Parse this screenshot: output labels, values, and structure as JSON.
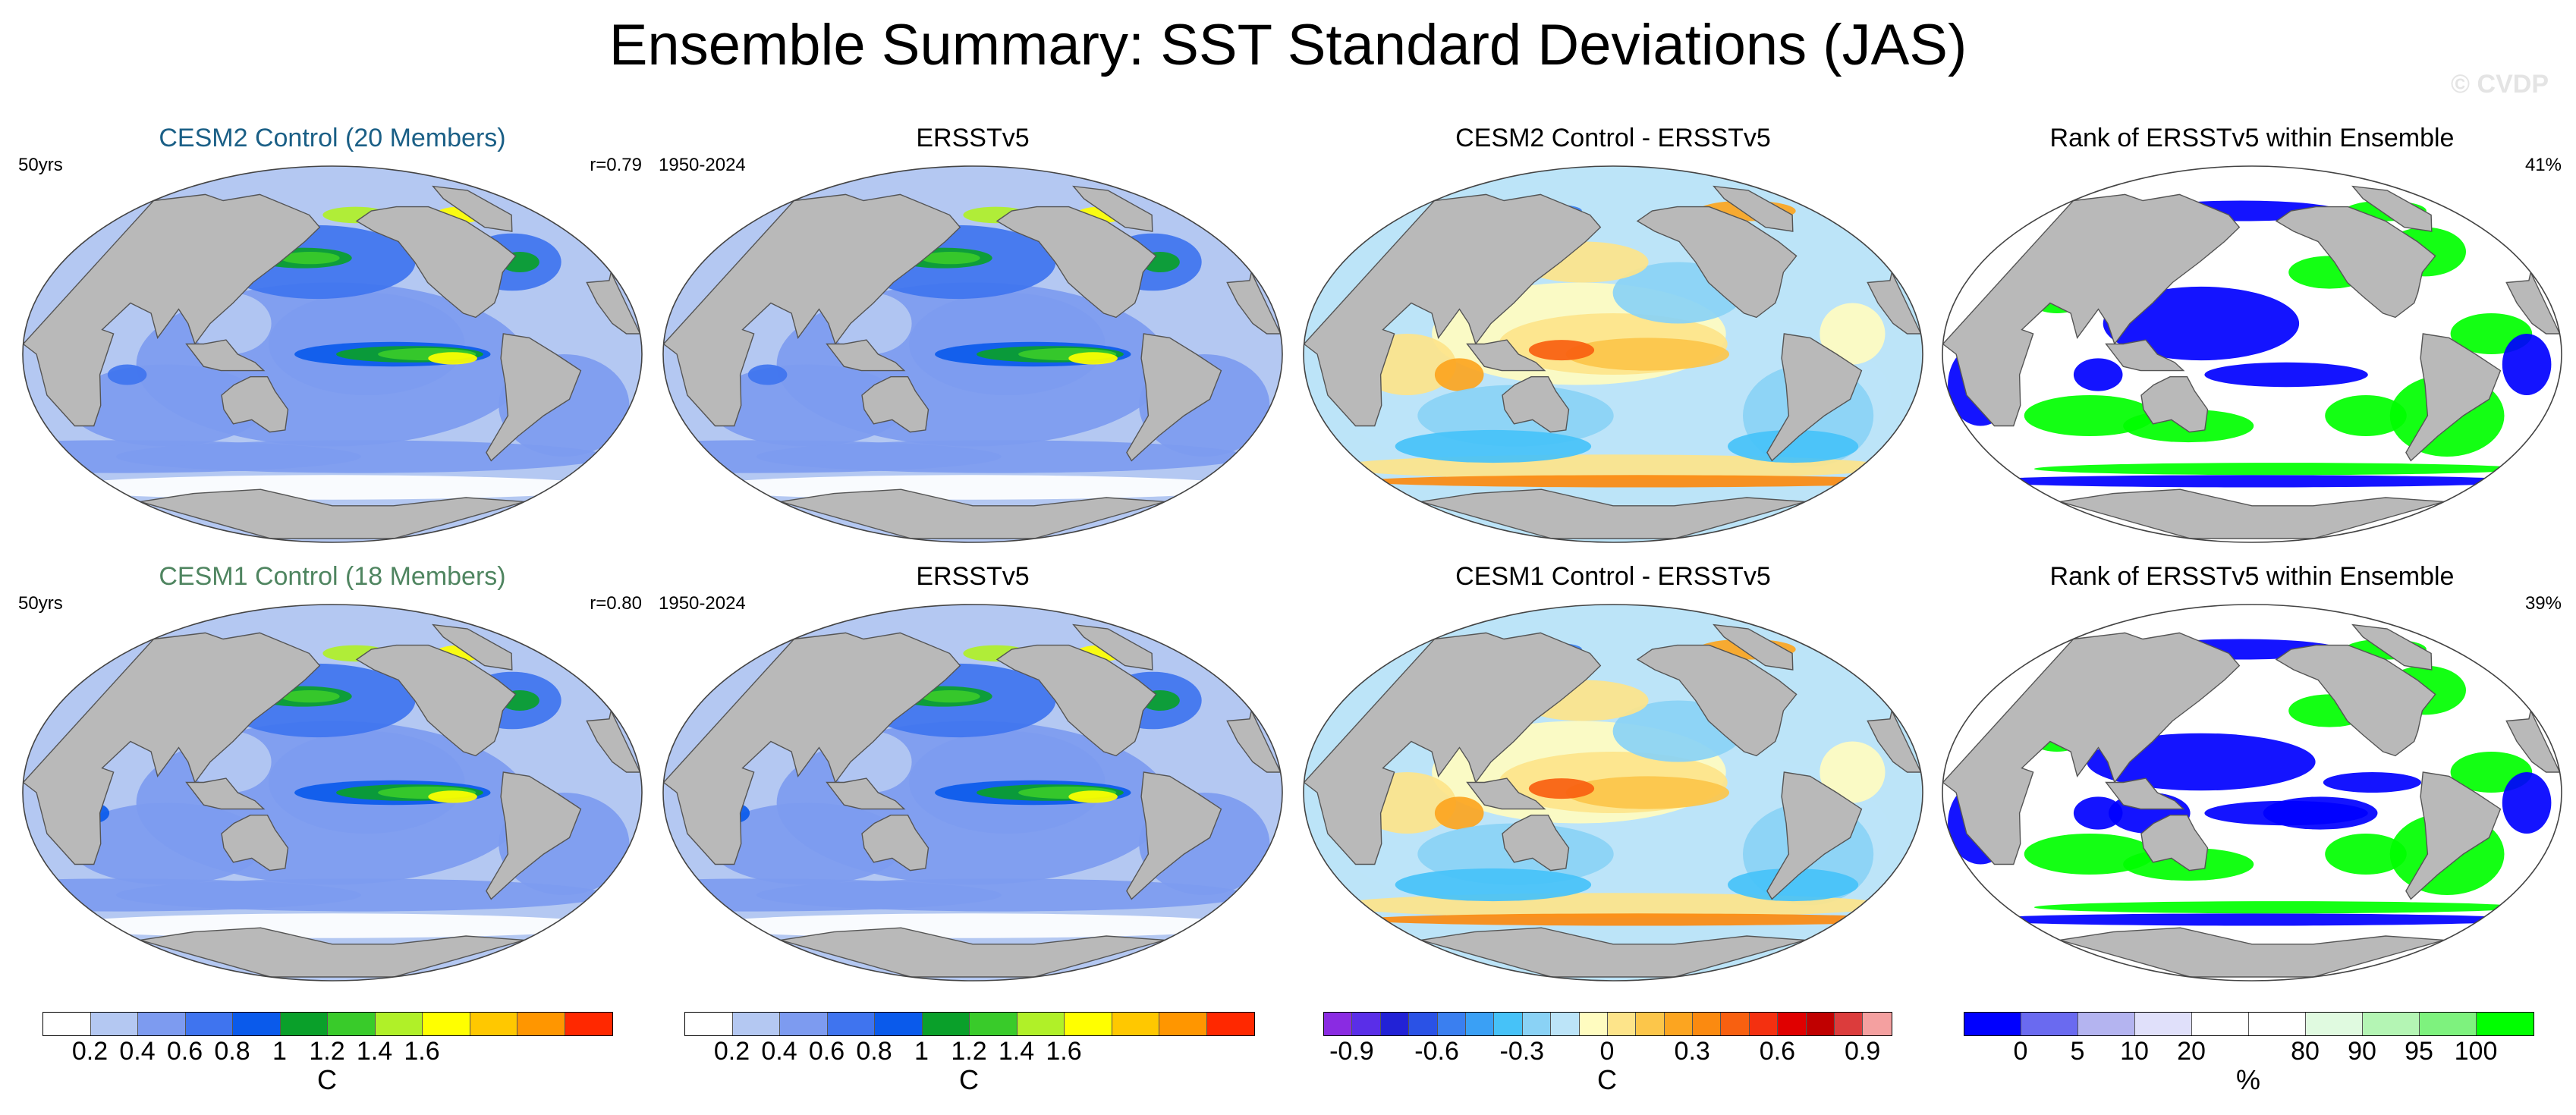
{
  "title": "Ensemble Summary: SST Standard Deviations (JAS)",
  "watermark": "© CVDP",
  "colors": {
    "land": "#b9b9b9",
    "ocean_bg": "#b4c8f2",
    "title_cesm2": "#1a5f86",
    "title_cesm1": "#4f8560"
  },
  "rows": [
    {
      "panels": [
        {
          "title": "CESM2 Control (20 Members)",
          "left": "50yrs",
          "right": "r=0.79",
          "kind": "std",
          "title_color": "#1a5f86"
        },
        {
          "title": "ERSSTv5",
          "left": "1950-2024",
          "right": "",
          "kind": "std",
          "title_color": "#000000"
        },
        {
          "title": "CESM2 Control - ERSSTv5",
          "left": "",
          "right": "",
          "kind": "diff",
          "title_color": "#000000"
        },
        {
          "title": "Rank of ERSSTv5 within Ensemble",
          "left": "",
          "right": "41%",
          "kind": "rank",
          "title_color": "#000000"
        }
      ]
    },
    {
      "panels": [
        {
          "title": "CESM1 Control (18 Members)",
          "left": "50yrs",
          "right": "r=0.80",
          "kind": "std",
          "title_color": "#4f8560"
        },
        {
          "title": "ERSSTv5",
          "left": "1950-2024",
          "right": "",
          "kind": "std",
          "title_color": "#000000"
        },
        {
          "title": "CESM1 Control - ERSSTv5",
          "left": "",
          "right": "",
          "kind": "diff",
          "title_color": "#000000"
        },
        {
          "title": "Rank of ERSSTv5 within Ensemble",
          "left": "",
          "right": "39%",
          "kind": "rank",
          "title_color": "#000000"
        }
      ]
    }
  ],
  "colorbars": [
    {
      "name": "std-colorbar-1",
      "colors": [
        "#ffffff",
        "#b4c8f2",
        "#7d9bf0",
        "#3f74ef",
        "#0a5aeb",
        "#0aa02a",
        "#39cb2a",
        "#b0f028",
        "#ffff00",
        "#ffc800",
        "#ff9600",
        "#ff2800"
      ],
      "labels": [
        "0.2",
        "0.4",
        "0.6",
        "0.8",
        "1",
        "1.2",
        "1.4",
        "1.6"
      ],
      "label_positions": [
        1,
        2,
        3,
        4,
        5,
        6,
        7,
        8
      ],
      "unit": "C"
    },
    {
      "name": "std-colorbar-2",
      "colors": [
        "#ffffff",
        "#b4c8f2",
        "#7d9bf0",
        "#3f74ef",
        "#0a5aeb",
        "#0aa02a",
        "#39cb2a",
        "#b0f028",
        "#ffff00",
        "#ffc800",
        "#ff9600",
        "#ff2800"
      ],
      "labels": [
        "0.2",
        "0.4",
        "0.6",
        "0.8",
        "1",
        "1.2",
        "1.4",
        "1.6"
      ],
      "label_positions": [
        1,
        2,
        3,
        4,
        5,
        6,
        7,
        8
      ],
      "unit": "C"
    },
    {
      "name": "diff-colorbar",
      "colors": [
        "#8a2be2",
        "#5a2ee8",
        "#2222d6",
        "#2a52e6",
        "#3a7ff0",
        "#3aa0f5",
        "#46c2f8",
        "#8ad2f5",
        "#bce4f8",
        "#fffcc0",
        "#fde48a",
        "#fcc64a",
        "#fca520",
        "#fb8a10",
        "#f86010",
        "#f43010",
        "#e00000",
        "#c00000",
        "#dc3c3c",
        "#f4a0a0"
      ],
      "labels": [
        "-0.9",
        "-0.6",
        "-0.3",
        "0",
        "0.3",
        "0.6",
        "0.9"
      ],
      "label_positions": [
        1,
        4,
        7,
        10,
        13,
        16,
        19
      ],
      "unit": "C"
    },
    {
      "name": "rank-colorbar",
      "colors": [
        "#0000ff",
        "#6a6af0",
        "#b4b4f0",
        "#e0e0fa",
        "#ffffff",
        "#ffffff",
        "#e0fae0",
        "#b4f5b4",
        "#7ef27e",
        "#00ff00"
      ],
      "labels": [
        "0",
        "5",
        "10",
        "20",
        "80",
        "90",
        "95",
        "100"
      ],
      "label_positions": [
        1,
        2,
        3,
        4,
        6,
        7,
        8,
        9
      ],
      "unit": "%"
    }
  ]
}
